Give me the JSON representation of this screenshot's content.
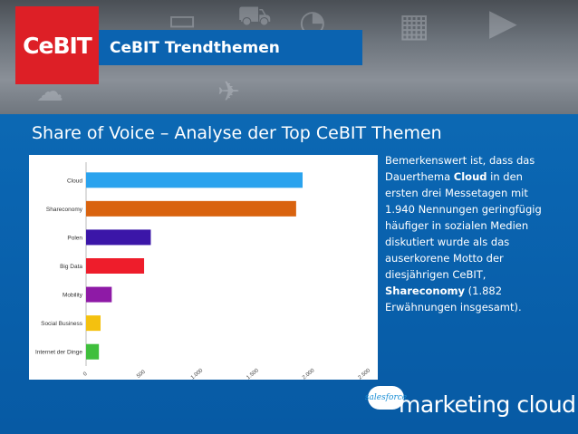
{
  "header": {
    "logo_text": "CeBIT",
    "section_title": "CeBIT Trendthemen"
  },
  "slide": {
    "title": "Share of Voice – Analyse der Top CeBIT Themen"
  },
  "chart_data": {
    "type": "bar",
    "orientation": "horizontal",
    "categories": [
      "Cloud",
      "Shareconomy",
      "Polen",
      "Big Data",
      "Mobility",
      "Social Business",
      "Internet der Dinge"
    ],
    "values": [
      1940,
      1882,
      580,
      520,
      230,
      130,
      115
    ],
    "colors": [
      "#2aa3ee",
      "#d9630f",
      "#3b16a8",
      "#ee1d2b",
      "#8e1aa6",
      "#f4c10f",
      "#3fbf3c"
    ],
    "xticks": [
      "0",
      "500",
      "1.000",
      "1.500",
      "2.000",
      "2.500"
    ],
    "xlim": [
      0,
      2500
    ],
    "grid": false
  },
  "sidebar_text": {
    "p1": "Bemerkenswert ist, dass das Dauerthema ",
    "b1": "Cloud",
    "p2": " in den ersten drei Messetagen mit 1.940 Nennungen geringfügig häufiger in sozialen Medien diskutiert wurde als das auserkorene Motto der diesjährigen CeBIT, ",
    "b2": "Shareconomy",
    "p3": " (1.882 Erwähnungen insgesamt)."
  },
  "footer": {
    "salesforce_text": "salesforce",
    "brand_text": "marketing cloud"
  },
  "icons": [
    "monitor-icon",
    "cart-icon",
    "rss-icon",
    "cloud-icon",
    "bird-icon",
    "play-icon"
  ]
}
